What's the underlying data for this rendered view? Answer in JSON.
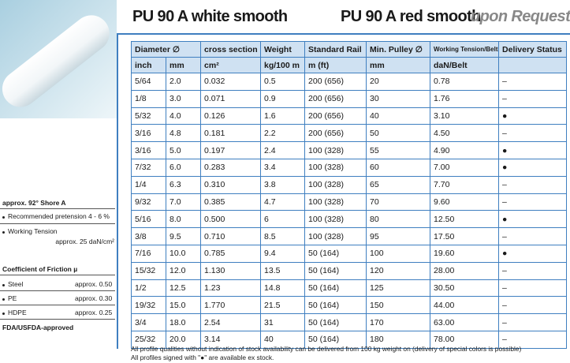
{
  "header": {
    "title_white": "PU 90 A white smooth",
    "title_red": "PU 90 A red smooth",
    "upon_request": "upon Request"
  },
  "left": {
    "hardness": "approx. 92° Shore A",
    "specs": [
      "Recommended pretension 4 - 6 %",
      "Working Tension"
    ],
    "spec_note": "approx. 25 daN/cm²",
    "friction_title": "Coefficient of Friction µ",
    "friction": [
      {
        "material": "Steel",
        "value": "approx. 0.50"
      },
      {
        "material": "PE",
        "value": "approx. 0.30"
      },
      {
        "material": "HDPE",
        "value": "approx. 0.25"
      }
    ],
    "approval": "FDA/USFDA-approved"
  },
  "table": {
    "header_top": [
      "Diameter ∅",
      "cross section",
      "Weight",
      "Standard Rail",
      "Min. Pulley ∅",
      "Working Tension/Belt",
      "Delivery Status"
    ],
    "header_units": [
      "inch",
      "mm",
      "cm²",
      "kg/100 m",
      "m (ft)",
      "mm",
      "daN/Belt"
    ],
    "rows": [
      [
        "5/64",
        "2.0",
        "0.032",
        "0.5",
        "200 (656)",
        "20",
        "0.78",
        "–"
      ],
      [
        "1/8",
        "3.0",
        "0.071",
        "0.9",
        "200 (656)",
        "30",
        "1.76",
        "–"
      ],
      [
        "5/32",
        "4.0",
        "0.126",
        "1.6",
        "200 (656)",
        "40",
        "3.10",
        "●"
      ],
      [
        "3/16",
        "4.8",
        "0.181",
        "2.2",
        "200 (656)",
        "50",
        "4.50",
        "–"
      ],
      [
        "3/16",
        "5.0",
        "0.197",
        "2.4",
        "100 (328)",
        "55",
        "4.90",
        "●"
      ],
      [
        "7/32",
        "6.0",
        "0.283",
        "3.4",
        "100 (328)",
        "60",
        "7.00",
        "●"
      ],
      [
        "1/4",
        "6.3",
        "0.310",
        "3.8",
        "100 (328)",
        "65",
        "7.70",
        "–"
      ],
      [
        "9/32",
        "7.0",
        "0.385",
        "4.7",
        "100 (328)",
        "70",
        "9.60",
        "–"
      ],
      [
        "5/16",
        "8.0",
        "0.500",
        "6",
        "100 (328)",
        "80",
        "12.50",
        "●"
      ],
      [
        "3/8",
        "9.5",
        "0.710",
        "8.5",
        "100 (328)",
        "95",
        "17.50",
        "–"
      ],
      [
        "7/16",
        "10.0",
        "0.785",
        "9.4",
        "50 (164)",
        "100",
        "19.60",
        "●"
      ],
      [
        "15/32",
        "12.0",
        "1.130",
        "13.5",
        "50 (164)",
        "120",
        "28.00",
        "–"
      ],
      [
        "1/2",
        "12.5",
        "1.23",
        "14.8",
        "50 (164)",
        "125",
        "30.50",
        "–"
      ],
      [
        "19/32",
        "15.0",
        "1.770",
        "21.5",
        "50 (164)",
        "150",
        "44.00",
        "–"
      ],
      [
        "3/4",
        "18.0",
        "2.54",
        "31",
        "50 (164)",
        "170",
        "63.00",
        "–"
      ],
      [
        "25/32",
        "20.0",
        "3.14",
        "40",
        "50 (164)",
        "180",
        "78.00",
        "–"
      ]
    ]
  },
  "footer": [
    "All profile qualities without indication of stock availability can be delivered from 100 kg weight on (delivery of special colors is possible)",
    "All profiles signed with \"●\" are available ex stock."
  ]
}
